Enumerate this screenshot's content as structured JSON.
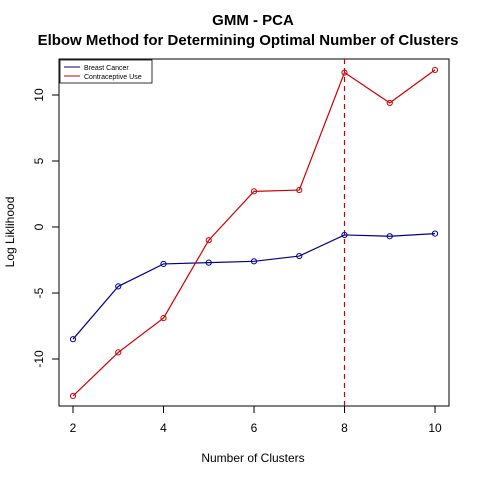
{
  "chart_data": {
    "type": "line",
    "title": "GMM - PCA",
    "subtitle": "Elbow Method for Determining Optimal Number of Clusters",
    "xlabel": "Number of Clusters",
    "ylabel": "Log Liklihood",
    "xlim": [
      2,
      10
    ],
    "ylim": [
      -13,
      12
    ],
    "x_ticks": [
      "2",
      "4",
      "6",
      "8",
      "10"
    ],
    "y_ticks": [
      "-10",
      "-5",
      "0",
      "5",
      "10"
    ],
    "grid": false,
    "legend_position": "top-left",
    "x": [
      2,
      3,
      4,
      5,
      6,
      7,
      8,
      9,
      10
    ],
    "series": [
      {
        "name": "Breast Cancer",
        "color": "#00008B",
        "values": [
          -8.5,
          -4.5,
          -2.8,
          -2.7,
          -2.6,
          -2.2,
          -0.6,
          -0.7,
          -0.5
        ]
      },
      {
        "name": "Contraceptive Use",
        "color": "#CC0000",
        "values": [
          -12.8,
          -9.5,
          -6.9,
          -1.0,
          2.7,
          2.8,
          11.7,
          9.4,
          11.9
        ]
      }
    ],
    "annotations": [
      {
        "type": "vline",
        "x": 8,
        "color": "#CC0000",
        "style": "dashed"
      }
    ]
  }
}
